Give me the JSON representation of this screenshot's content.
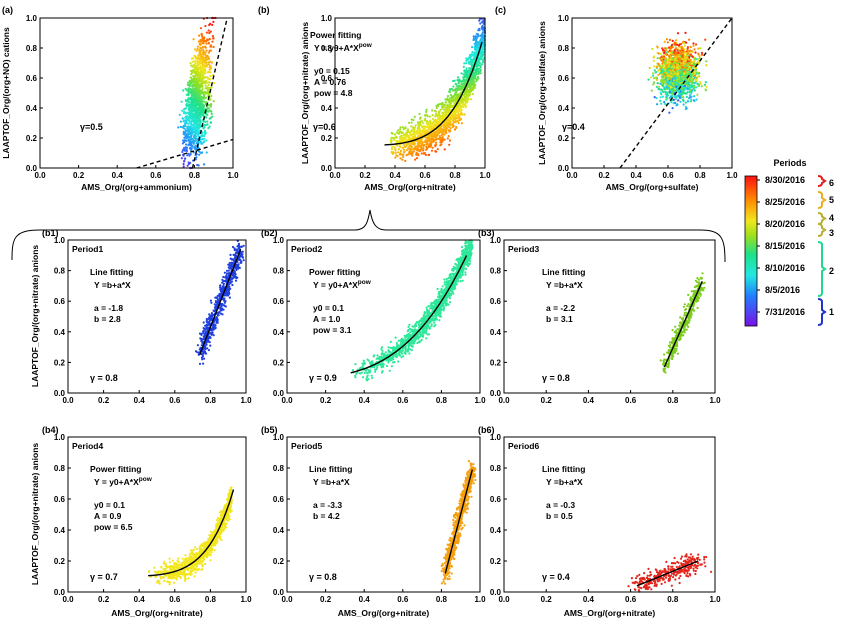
{
  "colors": {
    "period1": "#1f3fe0",
    "period2": "#2ee89a",
    "period3": "#7ccc1e",
    "period4": "#f2e61c",
    "period5": "#f5a00e",
    "period6": "#e2261c",
    "bracket_blue": "#2233cc",
    "bracket_teal": "#20d890",
    "bracket_olive": "#b8b030",
    "bracket_gold": "#e8b020",
    "bracket_red": "#e02020"
  },
  "colorbar": {
    "title": "Periods",
    "date_labels": [
      "8/30/2016",
      "8/25/2016",
      "8/20/2016",
      "8/15/2016",
      "8/10/2016",
      "8/5/2016",
      "7/31/2016"
    ],
    "period_numbers": [
      "6",
      "5",
      "4",
      "3",
      "2",
      "1"
    ]
  },
  "top_row_ylabels": {
    "a": "LAAPTOF_Org/(org+NO) cations",
    "b": "LAAPTOF_Org/(org+nitrate) anions",
    "c": "LAAPTOF_Org/(org+sulfate) anions"
  },
  "grid_ylabel": "LAAPTOF_Org/(org+nitrate) anions",
  "chart_data": [
    {
      "id": "a",
      "type": "scatter",
      "panel_label": "(a)",
      "xlabel": "AMS_Org/(org+ammonium)",
      "xlim": [
        0,
        1
      ],
      "ylim": [
        0,
        1
      ],
      "xticks": [
        "0.0",
        "0.2",
        "0.4",
        "0.6",
        "0.8",
        "1.0"
      ],
      "yticks": [
        "0.0",
        "0.2",
        "0.4",
        "0.6",
        "0.8",
        "1.0"
      ],
      "colored_by": "date",
      "gamma": "γ=0.5",
      "fit_lines": [
        {
          "style": "dashed",
          "points": [
            [
              0.5,
              0.0
            ],
            [
              1.0,
              0.19
            ]
          ]
        },
        {
          "style": "dashed",
          "points": [
            [
              0.79,
              0.0
            ],
            [
              0.97,
              1.0
            ]
          ]
        }
      ]
    },
    {
      "id": "b",
      "type": "scatter",
      "panel_label": "(b)",
      "xlabel": "AMS_Org/(org+nitrate)",
      "xlim": [
        0,
        1
      ],
      "ylim": [
        0,
        1
      ],
      "xticks": [
        "0.0",
        "0.2",
        "0.4",
        "0.6",
        "0.8",
        "1.0"
      ],
      "yticks": [
        "0.0",
        "0.2",
        "0.4",
        "0.6",
        "0.8",
        "1.0"
      ],
      "colored_by": "date",
      "gamma": "γ=0.6",
      "fit_title": "Power fitting",
      "fit_eq": "Y  = y0+A*X",
      "fit_sup": "pow",
      "params": [
        "y0 = 0.15",
        "A  = 0.76",
        "pow  = 4.8"
      ],
      "fit": {
        "kind": "power",
        "y0": 0.15,
        "A": 0.76,
        "pow": 4.8,
        "x_range": [
          0.33,
          0.98
        ]
      }
    },
    {
      "id": "c",
      "type": "scatter",
      "panel_label": "(c)",
      "xlabel": "AMS_Org/(org+sulfate)",
      "xlim": [
        0,
        1
      ],
      "ylim": [
        0,
        1
      ],
      "xticks": [
        "0.0",
        "0.2",
        "0.4",
        "0.6",
        "0.8",
        "1.0"
      ],
      "yticks": [
        "0.0",
        "0.2",
        "0.4",
        "0.6",
        "0.8",
        "1.0"
      ],
      "colored_by": "date",
      "gamma": "γ=0.4",
      "fit_lines": [
        {
          "style": "dashed",
          "points": [
            [
              0.3,
              0.0
            ],
            [
              1.0,
              1.0
            ]
          ]
        }
      ]
    },
    {
      "id": "b1",
      "type": "scatter",
      "panel_label": "(b1)",
      "period_title": "Period1",
      "xlim": [
        0,
        1
      ],
      "ylim": [
        0,
        1
      ],
      "xticks": [
        "0.0",
        "0.2",
        "0.4",
        "0.6",
        "0.8",
        "1.0"
      ],
      "yticks": [
        "0.0",
        "0.2",
        "0.4",
        "0.6",
        "0.8",
        "1.0"
      ],
      "fit_title": "Line fitting",
      "fit_eq": "Y  =b+a*X",
      "fit_sup": "",
      "params": [
        "a = -1.8",
        "b = 2.8"
      ],
      "gamma": "γ = 0.8",
      "fit": {
        "kind": "line",
        "a": -1.8,
        "b": 2.8,
        "points": [
          [
            0.74,
            0.25
          ],
          [
            0.97,
            0.94
          ]
        ]
      }
    },
    {
      "id": "b2",
      "type": "scatter",
      "panel_label": "(b2)",
      "period_title": "Period2",
      "xlim": [
        0,
        1
      ],
      "ylim": [
        0,
        1
      ],
      "xticks": [
        "0.0",
        "0.2",
        "0.4",
        "0.6",
        "0.8",
        "1.0"
      ],
      "yticks": [
        "0.0",
        "0.2",
        "0.4",
        "0.6",
        "0.8",
        "1.0"
      ],
      "fit_title": "Power fitting",
      "fit_eq": "Y  = y0+A*X",
      "fit_sup": "pow",
      "params": [
        "y0 = 0.1",
        "A  = 1.0",
        "pow  = 3.1"
      ],
      "gamma": "γ = 0.9",
      "fit": {
        "kind": "power",
        "y0": 0.1,
        "A": 1.0,
        "pow": 3.1,
        "x_range": [
          0.33,
          0.93
        ]
      }
    },
    {
      "id": "b3",
      "type": "scatter",
      "panel_label": "(b3)",
      "period_title": "Period3",
      "xlim": [
        0,
        1
      ],
      "ylim": [
        0,
        1
      ],
      "xticks": [
        "0.0",
        "0.2",
        "0.4",
        "0.6",
        "0.8",
        "1.0"
      ],
      "yticks": [
        "0.0",
        "0.2",
        "0.4",
        "0.6",
        "0.8",
        "1.0"
      ],
      "fit_title": "Line fitting",
      "fit_eq": "Y  =b+a*X",
      "fit_sup": "",
      "params": [
        "a = -2.2",
        "b = 3.1"
      ],
      "gamma": "γ = 0.8",
      "fit": {
        "kind": "line",
        "a": -2.2,
        "b": 3.1,
        "points": [
          [
            0.76,
            0.17
          ],
          [
            0.94,
            0.73
          ]
        ]
      }
    },
    {
      "id": "b4",
      "type": "scatter",
      "panel_label": "(b4)",
      "period_title": "Period4",
      "xlabel": "AMS_Org/(org+nitrate)",
      "xlim": [
        0,
        1
      ],
      "ylim": [
        0,
        1
      ],
      "xticks": [
        "0.0",
        "0.2",
        "0.4",
        "0.6",
        "0.8",
        "1.0"
      ],
      "yticks": [
        "0.0",
        "0.2",
        "0.4",
        "0.6",
        "0.8",
        "1.0"
      ],
      "fit_title": "Power fitting",
      "fit_eq": "Y  = y0+A*X",
      "fit_sup": "pow",
      "params": [
        "y0 = 0.1",
        "A  = 0.9",
        "pow  = 6.5"
      ],
      "gamma": "γ = 0.7",
      "fit": {
        "kind": "power",
        "y0": 0.1,
        "A": 0.9,
        "pow": 6.5,
        "x_range": [
          0.45,
          0.93
        ]
      }
    },
    {
      "id": "b5",
      "type": "scatter",
      "panel_label": "(b5)",
      "period_title": "Period5",
      "xlabel": "AMS_Org/(org+nitrate)",
      "xlim": [
        0,
        1
      ],
      "ylim": [
        0,
        1
      ],
      "xticks": [
        "0.0",
        "0.2",
        "0.4",
        "0.6",
        "0.8",
        "1.0"
      ],
      "yticks": [
        "0.0",
        "0.2",
        "0.4",
        "0.6",
        "0.8",
        "1.0"
      ],
      "fit_title": "Line fitting",
      "fit_eq": "Y  =b+a*X",
      "fit_sup": "",
      "params": [
        "a = -3.3",
        "b = 4.2"
      ],
      "gamma": "γ = 0.8",
      "fit": {
        "kind": "line",
        "a": -3.3,
        "b": 4.2,
        "points": [
          [
            0.82,
            0.12
          ],
          [
            0.96,
            0.79
          ]
        ]
      }
    },
    {
      "id": "b6",
      "type": "scatter",
      "panel_label": "(b6)",
      "period_title": "Period6",
      "xlabel": "AMS_Org/(org+nitrate)",
      "xlim": [
        0,
        1
      ],
      "ylim": [
        0,
        1
      ],
      "xticks": [
        "0.0",
        "0.2",
        "0.4",
        "0.6",
        "0.8",
        "1.0"
      ],
      "yticks": [
        "0.0",
        "0.2",
        "0.4",
        "0.6",
        "0.8",
        "1.0"
      ],
      "fit_title": "Line fitting",
      "fit_eq": "Y  =b+a*X",
      "fit_sup": "",
      "params": [
        "a = -0.3",
        "b = 0.5"
      ],
      "gamma": "γ = 0.4",
      "fit": {
        "kind": "line",
        "a": -0.3,
        "b": 0.5,
        "points": [
          [
            0.63,
            0.04
          ],
          [
            0.92,
            0.2
          ]
        ]
      }
    }
  ]
}
